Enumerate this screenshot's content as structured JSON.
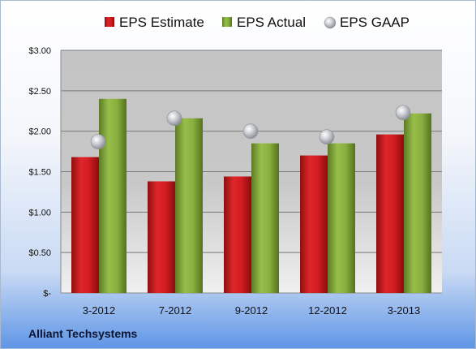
{
  "company": "Alliant Techsystems",
  "chart_data": {
    "type": "bar",
    "categories": [
      "3-2012",
      "7-2012",
      "9-2012",
      "12-2012",
      "3-2013"
    ],
    "series": [
      {
        "name": "EPS Estimate",
        "type": "bar",
        "color": "#c0161b",
        "values": [
          1.68,
          1.38,
          1.44,
          1.7,
          1.96
        ]
      },
      {
        "name": "EPS Actual",
        "type": "bar",
        "color": "#7fa33b",
        "values": [
          2.4,
          2.16,
          1.85,
          1.85,
          2.22
        ]
      },
      {
        "name": "EPS GAAP",
        "type": "scatter",
        "color": "#b9bdc3",
        "values": [
          1.87,
          2.16,
          2.0,
          1.93,
          2.23
        ]
      }
    ],
    "yticks": [
      "$-",
      "$0.50",
      "$1.00",
      "$1.50",
      "$2.00",
      "$2.50",
      "$3.00"
    ],
    "ylim": [
      0,
      3
    ],
    "grid": true,
    "legend_position": "top"
  }
}
